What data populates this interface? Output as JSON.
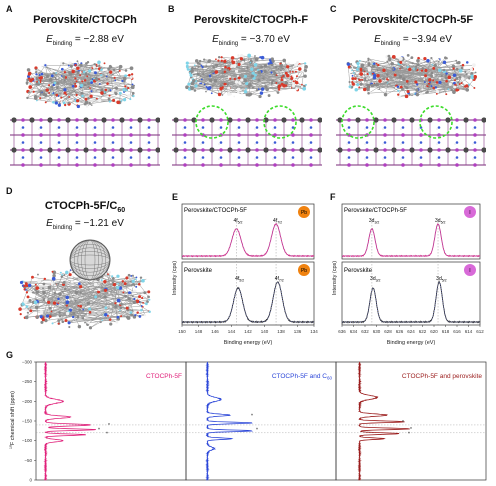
{
  "panels": {
    "A": {
      "letter": "A",
      "title": "Perovskite/CTOCPh",
      "e_symbol": "E",
      "e_sub": "binding",
      "e_value": " = −2.88 eV",
      "binding_ev": -2.88
    },
    "B": {
      "letter": "B",
      "title": "Perovskite/CTOCPh-F",
      "e_symbol": "E",
      "e_sub": "binding",
      "e_value": " = −3.70 eV",
      "binding_ev": -3.7
    },
    "C": {
      "letter": "C",
      "title": "Perovskite/CTOCPh-5F",
      "e_symbol": "E",
      "e_sub": "binding",
      "e_value": " = −3.94 eV",
      "binding_ev": -3.94
    },
    "D": {
      "letter": "D",
      "title_main": "CTOCPh-5F/C",
      "title_sub": "60",
      "e_symbol": "E",
      "e_sub": "binding",
      "e_value": " = −1.21 eV",
      "binding_ev": -1.21
    },
    "E": {
      "letter": "E",
      "top_label": "Perovskite/CTOCPh-5F",
      "bottom_label": "Perovskite",
      "element_badge": "Pb",
      "peak1_label": "4f",
      "peak1_sub": "5/2",
      "peak2_label": "4f",
      "peak2_sub": "7/2",
      "ylabel": "Intensity (cps)",
      "xlabel": "Binding energy (eV)",
      "ticks": [
        "150",
        "148",
        "146",
        "144",
        "142",
        "140",
        "138",
        "136",
        "134"
      ]
    },
    "F": {
      "letter": "F",
      "top_label": "Perovskite/CTOCPh-5F",
      "bottom_label": "Perovskite",
      "element_badge": "I",
      "peak1_label": "3d",
      "peak1_sub": "3/2",
      "peak2_label": "3d",
      "peak2_sub": "5/2",
      "ylabel": "Intensity (cps)",
      "xlabel": "Binding energy (eV)",
      "ticks": [
        "636",
        "634",
        "632",
        "630",
        "628",
        "626",
        "624",
        "622",
        "620",
        "618",
        "616",
        "614",
        "612"
      ]
    },
    "G": {
      "letter": "G",
      "ylabel_sup": "19",
      "ylabel_main": "F chemical shift (ppm)",
      "ticks": [
        "−300",
        "−250",
        "−200",
        "−150",
        "−100",
        "−50",
        "0"
      ],
      "legend1": "CTOCPh-5F",
      "legend2_main": "CTOCPh-5F and C",
      "legend2_sub": "60",
      "legend3": "CTOCPh-5F and perovskite",
      "color1": "#e0207a",
      "color2": "#2b46d8",
      "color3": "#9a1b1b"
    }
  },
  "colors": {
    "pb_badge": "#f0820f",
    "i_badge": "#d86ad8",
    "xps_top": "#e0207a",
    "xps_bottom": "#222222",
    "fit": "#6a78d8"
  },
  "chart_data": [
    {
      "type": "line",
      "panel": "E",
      "xlabel": "Binding energy (eV)",
      "ylabel": "Intensity (cps)",
      "xlim": [
        150,
        134
      ],
      "series": [
        {
          "name": "Perovskite/CTOCPh-5F",
          "peaks": [
            143.4,
            138.6
          ]
        },
        {
          "name": "Perovskite",
          "peaks": [
            143.2,
            138.4
          ]
        }
      ]
    },
    {
      "type": "line",
      "panel": "F",
      "xlabel": "Binding energy (eV)",
      "ylabel": "Intensity (cps)",
      "xlim": [
        636,
        612
      ],
      "series": [
        {
          "name": "Perovskite/CTOCPh-5F",
          "peaks": [
            630.8,
            619.3
          ]
        },
        {
          "name": "Perovskite",
          "peaks": [
            630.6,
            619.1
          ]
        }
      ]
    },
    {
      "type": "line",
      "panel": "G",
      "ylabel": "19F chemical shift (ppm)",
      "ylim": [
        -300,
        0
      ],
      "series": [
        {
          "name": "CTOCPh-5F"
        },
        {
          "name": "CTOCPh-5F and C60"
        },
        {
          "name": "CTOCPh-5F and perovskite"
        }
      ]
    }
  ]
}
